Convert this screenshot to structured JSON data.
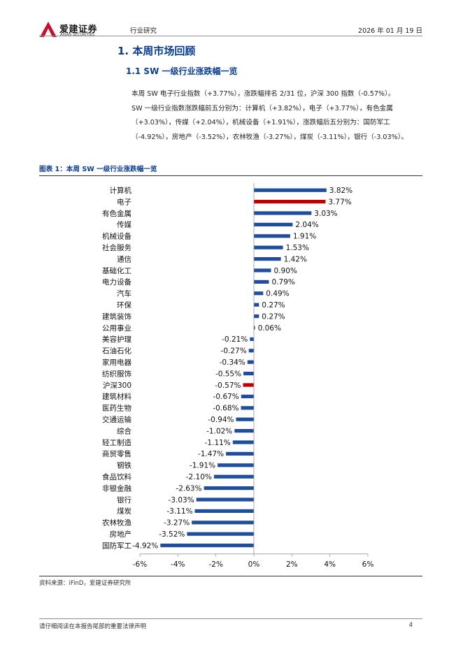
{
  "header": {
    "brand_cn": "爱建证券",
    "brand_en": "AIJIAN SECURITIES",
    "section": "行业研究",
    "date": "2026 年 01 月 19 日"
  },
  "heading1": "1.  本周市场回顾",
  "heading2": "1.1 SW 一级行业涨跌幅一览",
  "paragraph1": "本周 SW 电子行业指数（+3.77%），涨跌幅排名 2/31 位，沪深 300 指数（-0.57%）。",
  "paragraph2": "SW 一级行业指数涨跌幅前五分别为：计算机（+3.82%），电子（+3.77%），有色金属（+3.03%），传媒（+2.04%），机械设备（+1.91%），涨跌幅后五分别为：国防军工（-4.92%），房地产（-3.52%），农林牧渔（-3.27%），煤炭（-3.11%），银行（-3.03%）。",
  "figure_title": "图表 1：本周 SW 一级行业涨跌幅一览",
  "source": "资料来源：iFinD，爱建证券研究所",
  "footer": {
    "disclaimer": "请仔细阅读在本报告尾部的重要法律声明",
    "page": "4"
  },
  "colors": {
    "bar": "#1f4e9e",
    "highlight": "#c00000",
    "heading": "#0a3d91",
    "logo": "#c8102e"
  },
  "chart_data": {
    "type": "bar",
    "orientation": "horizontal",
    "categories": [
      "计算机",
      "电子",
      "有色金属",
      "传媒",
      "机械设备",
      "社会服务",
      "通信",
      "基础化工",
      "电力设备",
      "汽车",
      "环保",
      "建筑装饰",
      "公用事业",
      "美容护理",
      "石油石化",
      "家用电器",
      "纺织服饰",
      "沪深300",
      "建筑材料",
      "医药生物",
      "交通运输",
      "综合",
      "轻工制造",
      "商贸零售",
      "钢铁",
      "食品饮料",
      "非银金融",
      "银行",
      "煤炭",
      "农林牧渔",
      "房地产",
      "国防军工"
    ],
    "values": [
      3.82,
      3.77,
      3.03,
      2.04,
      1.91,
      1.53,
      1.42,
      0.9,
      0.79,
      0.49,
      0.27,
      0.27,
      0.06,
      -0.21,
      -0.27,
      -0.34,
      -0.55,
      -0.57,
      -0.67,
      -0.68,
      -0.94,
      -1.02,
      -1.11,
      -1.47,
      -1.91,
      -2.1,
      -2.63,
      -3.03,
      -3.11,
      -3.27,
      -3.52,
      -4.92
    ],
    "value_labels": [
      "3.82%",
      "3.77%",
      "3.03%",
      "2.04%",
      "1.91%",
      "1.53%",
      "1.42%",
      "0.90%",
      "0.79%",
      "0.49%",
      "0.27%",
      "0.27%",
      "0.06%",
      "-0.21%",
      "-0.27%",
      "-0.34%",
      "-0.55%",
      "-0.57%",
      "-0.67%",
      "-0.68%",
      "-0.94%",
      "-1.02%",
      "-1.11%",
      "-1.47%",
      "-1.91%",
      "-2.10%",
      "-2.63%",
      "-3.03%",
      "-3.11%",
      "-3.27%",
      "-3.52%",
      "-4.92%"
    ],
    "highlighted": [
      "电子",
      "沪深300"
    ],
    "xlim": [
      -6,
      6
    ],
    "xticks": [
      -6,
      -4,
      -2,
      0,
      2,
      4,
      6
    ],
    "xtick_labels": [
      "-6%",
      "-4%",
      "-2%",
      "0%",
      "2%",
      "4%",
      "6%"
    ],
    "grid": false,
    "legend": "none"
  }
}
